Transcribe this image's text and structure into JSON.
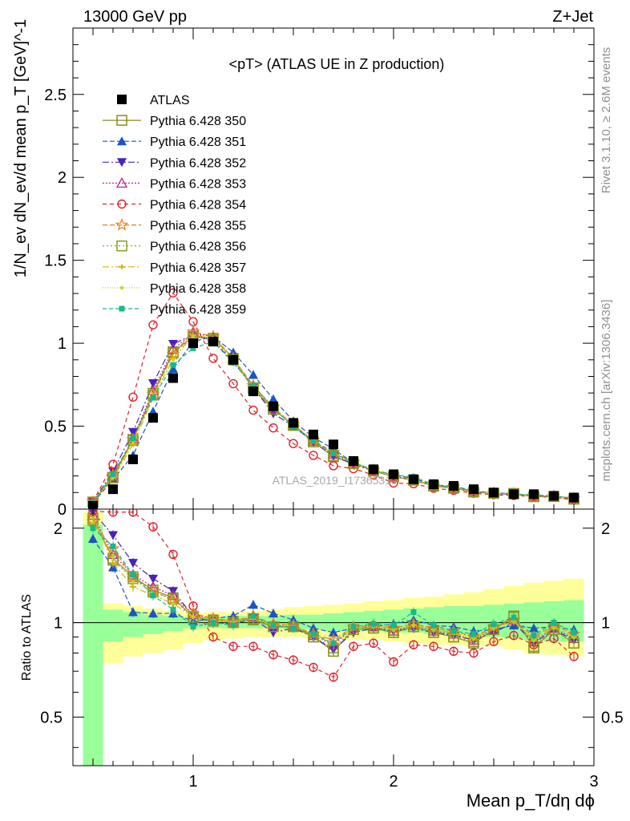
{
  "header": {
    "left": "13000 GeV pp",
    "right": "Z+Jet"
  },
  "side_labels": {
    "top": "Rivet 3.1.10, ≥ 2.6M events",
    "bottom": "mcplots.cern.ch [arXiv:1306.3436]"
  },
  "watermark": "ATLAS_2019_I1736531",
  "chart_data": {
    "type": "scatter",
    "title": "<pT> (ATLAS UE in Z production)",
    "xlabel": "Mean p_T/dη dϕ",
    "ylabel": "1/N_ev dN_ev/d mean p_T [GeV]^-1",
    "ratio_ylabel": "Ratio to ATLAS",
    "xlim": [
      0.4,
      3.0
    ],
    "ylim": [
      0,
      2.9
    ],
    "ratio_ylim": [
      0.35,
      2.3
    ],
    "ratio_scale": "log",
    "x_ticks": [
      1,
      2,
      3
    ],
    "y_ticks": [
      0,
      0.5,
      1,
      1.5,
      2,
      2.5
    ],
    "ratio_ticks": [
      0.5,
      1,
      2
    ],
    "legend_position": "top-left",
    "x": [
      0.5,
      0.6,
      0.7,
      0.8,
      0.9,
      1.0,
      1.1,
      1.2,
      1.3,
      1.4,
      1.5,
      1.6,
      1.7,
      1.8,
      1.9,
      2.0,
      2.1,
      2.2,
      2.3,
      2.4,
      2.5,
      2.6,
      2.7,
      2.8,
      2.9
    ],
    "data": {
      "name": "ATLAS",
      "color": "#000000",
      "y": [
        0.02,
        0.12,
        0.3,
        0.55,
        0.79,
        1.0,
        1.01,
        0.9,
        0.71,
        0.62,
        0.52,
        0.45,
        0.39,
        0.29,
        0.24,
        0.21,
        0.18,
        0.15,
        0.14,
        0.12,
        0.1,
        0.09,
        0.09,
        0.08,
        0.07
      ]
    },
    "bands": {
      "yellow_lower": [
        0.35,
        0.74,
        0.78,
        0.8,
        0.82,
        0.86,
        0.88,
        0.89,
        0.9,
        0.9,
        0.9,
        0.89,
        0.89,
        0.88,
        0.88,
        0.87,
        0.86,
        0.85,
        0.85,
        0.84,
        0.84,
        0.82,
        0.8,
        0.79,
        0.78
      ],
      "yellow_upper": [
        2.25,
        1.15,
        1.13,
        1.11,
        1.09,
        1.07,
        1.08,
        1.08,
        1.09,
        1.1,
        1.12,
        1.13,
        1.14,
        1.15,
        1.17,
        1.18,
        1.2,
        1.21,
        1.23,
        1.25,
        1.28,
        1.31,
        1.34,
        1.36,
        1.38
      ],
      "green_lower": [
        0.35,
        0.87,
        0.9,
        0.92,
        0.94,
        0.96,
        0.96,
        0.96,
        0.96,
        0.96,
        0.95,
        0.95,
        0.94,
        0.94,
        0.94,
        0.93,
        0.93,
        0.92,
        0.92,
        0.91,
        0.9,
        0.89,
        0.88,
        0.87,
        0.87
      ],
      "green_upper": [
        2.05,
        1.1,
        1.08,
        1.06,
        1.05,
        1.04,
        1.04,
        1.05,
        1.05,
        1.05,
        1.06,
        1.06,
        1.07,
        1.08,
        1.09,
        1.1,
        1.11,
        1.12,
        1.13,
        1.13,
        1.14,
        1.15,
        1.16,
        1.17,
        1.18
      ]
    },
    "series": [
      {
        "name": "Pythia 6.428 350",
        "color": "#8a8a1e",
        "marker": "open-square",
        "dash": "",
        "ratio": [
          2.15,
          1.6,
          1.4,
          1.27,
          1.2,
          1.04,
          1.02,
          1.01,
          1.02,
          0.97,
          0.97,
          0.9,
          0.81,
          0.95,
          0.96,
          0.93,
          0.97,
          0.93,
          0.9,
          0.86,
          0.95,
          1.05,
          0.83,
          0.95,
          0.86
        ]
      },
      {
        "name": "Pythia 6.428 351",
        "color": "#1a55c2",
        "marker": "filled-triangle-up",
        "dash": "6,3",
        "ratio": [
          1.85,
          1.5,
          1.08,
          1.07,
          1.07,
          1.01,
          1.03,
          1.05,
          1.14,
          1.07,
          1.02,
          0.96,
          0.93,
          0.96,
          0.97,
          0.99,
          1.02,
          0.98,
          0.97,
          0.94,
          0.95,
          0.98,
          0.96,
          0.97,
          0.95
        ]
      },
      {
        "name": "Pythia 6.428 352",
        "color": "#4a22b8",
        "marker": "filled-triangle-down",
        "dash": "8,3,2,3",
        "ratio": [
          2.25,
          1.9,
          1.55,
          1.38,
          1.26,
          1.05,
          1.0,
          0.99,
          1.03,
          0.93,
          0.96,
          0.9,
          0.82,
          0.93,
          0.96,
          0.94,
          0.96,
          0.93,
          0.91,
          0.88,
          0.93,
          1.0,
          0.86,
          0.95,
          0.88
        ]
      },
      {
        "name": "Pythia 6.428 353",
        "color": "#b02a9a",
        "marker": "open-triangle-up",
        "dash": "2,2",
        "ratio": [
          2.2,
          1.65,
          1.42,
          1.3,
          1.22,
          1.06,
          1.03,
          1.01,
          1.04,
          0.98,
          0.97,
          0.91,
          0.85,
          0.96,
          0.97,
          0.94,
          0.98,
          0.94,
          0.92,
          0.88,
          0.96,
          1.02,
          0.87,
          0.96,
          0.89
        ]
      },
      {
        "name": "Pythia 6.428 354",
        "color": "#e0202a",
        "marker": "open-circle",
        "dash": "5,4",
        "ratio": [
          2.3,
          2.25,
          2.25,
          2.02,
          1.65,
          1.13,
          0.9,
          0.84,
          0.84,
          0.79,
          0.76,
          0.72,
          0.67,
          0.84,
          0.86,
          0.75,
          0.85,
          0.84,
          0.81,
          0.8,
          0.87,
          0.91,
          0.85,
          0.89,
          0.78
        ]
      },
      {
        "name": "Pythia 6.428 355",
        "color": "#f07a1e",
        "marker": "open-star",
        "dash": "6,3",
        "ratio": [
          2.1,
          1.72,
          1.4,
          1.26,
          1.18,
          1.07,
          1.03,
          1.01,
          1.05,
          0.99,
          0.98,
          0.92,
          0.88,
          0.97,
          0.98,
          0.96,
          0.99,
          0.96,
          0.94,
          0.9,
          0.97,
          1.02,
          0.9,
          0.98,
          0.92
        ]
      },
      {
        "name": "Pythia 6.428 356",
        "color": "#8a9a1e",
        "marker": "open-square",
        "dash": "2,3",
        "ratio": [
          2.12,
          1.58,
          1.38,
          1.25,
          1.19,
          1.04,
          1.01,
          1.0,
          1.03,
          0.97,
          0.97,
          0.9,
          0.83,
          0.95,
          0.96,
          0.93,
          0.97,
          0.93,
          0.9,
          0.87,
          0.95,
          1.04,
          0.84,
          0.95,
          0.86
        ]
      },
      {
        "name": "Pythia 6.428 357",
        "color": "#d6b418",
        "marker": "cross-dash",
        "dash": "8,3,2,3",
        "ratio": [
          2.18,
          1.55,
          1.3,
          1.22,
          1.15,
          1.05,
          1.02,
          1.01,
          1.03,
          0.98,
          0.98,
          0.91,
          0.86,
          0.96,
          0.97,
          0.95,
          0.98,
          0.95,
          0.93,
          0.89,
          0.96,
          1.01,
          0.88,
          0.97,
          0.9
        ]
      },
      {
        "name": "Pythia 6.428 358",
        "color": "#c4d61a",
        "marker": "small-dot",
        "dash": "1,2",
        "ratio": [
          2.08,
          1.62,
          1.35,
          1.24,
          1.14,
          1.04,
          1.02,
          1.0,
          1.03,
          0.98,
          0.97,
          0.91,
          0.86,
          0.96,
          0.97,
          0.95,
          0.98,
          0.95,
          0.92,
          0.89,
          0.96,
          1.01,
          0.88,
          0.96,
          0.9
        ]
      },
      {
        "name": "Pythia 6.428 359",
        "color": "#18b88a",
        "marker": "filled-square-small",
        "dash": "5,3",
        "ratio": [
          2.0,
          1.75,
          1.42,
          1.22,
          1.1,
          0.97,
          1.0,
          0.98,
          1.05,
          0.98,
          0.96,
          0.92,
          0.86,
          0.97,
          0.99,
          0.98,
          1.08,
          0.98,
          0.94,
          0.92,
          0.99,
          1.04,
          0.91,
          1.0,
          0.93
        ]
      }
    ]
  }
}
